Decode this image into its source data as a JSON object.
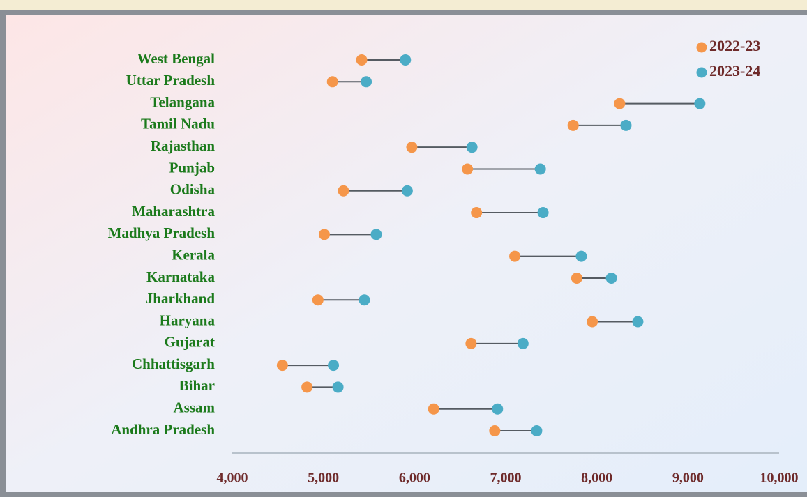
{
  "chart_data": {
    "type": "dumbbell",
    "categories": [
      "Andhra Pradesh",
      "Assam",
      "Bihar",
      "Chhattisgarh",
      "Gujarat",
      "Haryana",
      "Jharkhand",
      "Karnataka",
      "Kerala",
      "Madhya Pradesh",
      "Maharashtra",
      "Odisha",
      "Punjab",
      "Rajasthan",
      "Tamil Nadu",
      "Telangana",
      "Uttar Pradesh",
      "West Bengal"
    ],
    "series": [
      {
        "name": "2022-23",
        "color": "#f5964a",
        "values": [
          6880,
          6210,
          4820,
          4550,
          6620,
          7950,
          4940,
          7780,
          7100,
          5010,
          6680,
          5220,
          6580,
          5970,
          7740,
          8250,
          5100,
          5420
        ]
      },
      {
        "name": "2023-24",
        "color": "#4bacc6",
        "values": [
          7340,
          6910,
          5160,
          5110,
          7190,
          8450,
          5450,
          8160,
          7830,
          5580,
          7410,
          5920,
          7380,
          6630,
          8320,
          9130,
          5470,
          5900
        ]
      }
    ],
    "xlim": [
      4000,
      10000
    ],
    "xticks": [
      {
        "value": 4000,
        "label": "4,000"
      },
      {
        "value": 5000,
        "label": "5,000"
      },
      {
        "value": 6000,
        "label": "6,000"
      },
      {
        "value": 7000,
        "label": "7,000"
      },
      {
        "value": 8000,
        "label": "8,000"
      },
      {
        "value": 9000,
        "label": "9,000"
      },
      {
        "value": 10000,
        "label": "10,000"
      }
    ],
    "legend": "top-right"
  }
}
